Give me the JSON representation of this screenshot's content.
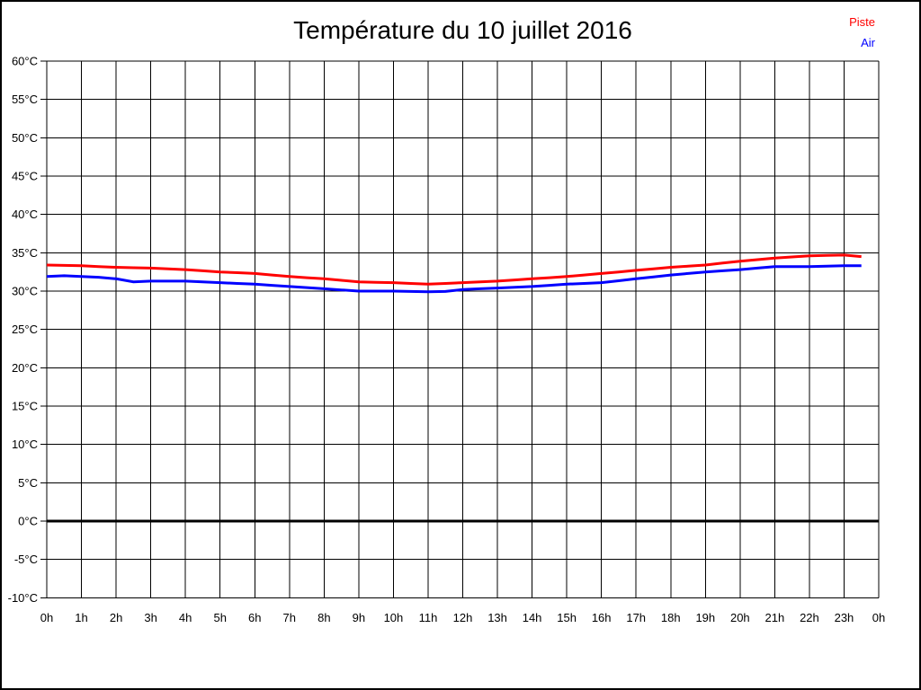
{
  "page": {
    "background": "#ffffff",
    "border_color": "#000000"
  },
  "chart_data": {
    "type": "line",
    "title": "Température du 10 juillet 2016",
    "xlabel": "",
    "ylabel": "",
    "grid": true,
    "legend_position": "top-right",
    "xlim": [
      0,
      24
    ],
    "ylim": [
      -10,
      60
    ],
    "x_ticks": [
      "0h",
      "1h",
      "2h",
      "3h",
      "4h",
      "5h",
      "6h",
      "7h",
      "8h",
      "9h",
      "10h",
      "11h",
      "12h",
      "13h",
      "14h",
      "15h",
      "16h",
      "17h",
      "18h",
      "19h",
      "20h",
      "21h",
      "22h",
      "23h",
      "0h"
    ],
    "x_tick_hours": [
      0,
      1,
      2,
      3,
      4,
      5,
      6,
      7,
      8,
      9,
      10,
      11,
      12,
      13,
      14,
      15,
      16,
      17,
      18,
      19,
      20,
      21,
      22,
      23,
      24
    ],
    "y_ticks": [
      "60°C",
      "55°C",
      "50°C",
      "45°C",
      "40°C",
      "35°C",
      "30°C",
      "25°C",
      "20°C",
      "15°C",
      "10°C",
      "5°C",
      "0°C",
      "-5°C",
      "-10°C"
    ],
    "y_tick_values": [
      60,
      55,
      50,
      45,
      40,
      35,
      30,
      25,
      20,
      15,
      10,
      5,
      0,
      -5,
      -10
    ],
    "zero_line": {
      "value": 0,
      "width": 3
    },
    "x": [
      0,
      0.5,
      1,
      1.5,
      2,
      2.5,
      3,
      3.5,
      4,
      4.5,
      5,
      5.5,
      6,
      6.5,
      7,
      7.5,
      8,
      8.5,
      9,
      9.5,
      10,
      10.5,
      11,
      11.5,
      12,
      12.5,
      13,
      13.5,
      14,
      14.5,
      15,
      15.5,
      16,
      16.5,
      17,
      17.5,
      18,
      18.5,
      19,
      19.5,
      20,
      20.5,
      21,
      21.5,
      22,
      22.5,
      23,
      23.5
    ],
    "series": [
      {
        "name": "Piste",
        "color": "#ff0000",
        "values": [
          33.4,
          33.35,
          33.3,
          33.2,
          33.1,
          33.05,
          33.0,
          32.9,
          32.8,
          32.65,
          32.5,
          32.4,
          32.3,
          32.1,
          31.9,
          31.75,
          31.6,
          31.4,
          31.2,
          31.15,
          31.1,
          31.0,
          30.9,
          31.0,
          31.1,
          31.2,
          31.3,
          31.45,
          31.6,
          31.75,
          31.9,
          32.1,
          32.3,
          32.5,
          32.7,
          32.9,
          33.1,
          33.25,
          33.4,
          33.65,
          33.9,
          34.1,
          34.3,
          34.45,
          34.6,
          34.65,
          34.7,
          34.5
        ]
      },
      {
        "name": "Air",
        "color": "#0000ff",
        "values": [
          31.9,
          32.0,
          31.9,
          31.8,
          31.6,
          31.2,
          31.3,
          31.3,
          31.3,
          31.2,
          31.1,
          31.0,
          30.9,
          30.75,
          30.6,
          30.45,
          30.3,
          30.15,
          30.0,
          30.0,
          30.0,
          29.95,
          29.9,
          29.95,
          30.2,
          30.3,
          30.4,
          30.5,
          30.6,
          30.75,
          30.9,
          31.0,
          31.1,
          31.35,
          31.6,
          31.85,
          32.1,
          32.3,
          32.5,
          32.65,
          32.8,
          33.0,
          33.2,
          33.2,
          33.2,
          33.25,
          33.3,
          33.3
        ]
      }
    ]
  }
}
